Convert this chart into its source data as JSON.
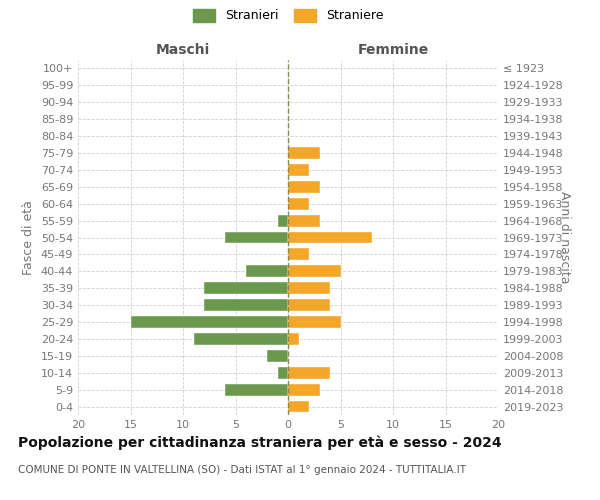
{
  "age_groups": [
    "100+",
    "95-99",
    "90-94",
    "85-89",
    "80-84",
    "75-79",
    "70-74",
    "65-69",
    "60-64",
    "55-59",
    "50-54",
    "45-49",
    "40-44",
    "35-39",
    "30-34",
    "25-29",
    "20-24",
    "15-19",
    "10-14",
    "5-9",
    "0-4"
  ],
  "birth_years": [
    "≤ 1923",
    "1924-1928",
    "1929-1933",
    "1934-1938",
    "1939-1943",
    "1944-1948",
    "1949-1953",
    "1954-1958",
    "1959-1963",
    "1964-1968",
    "1969-1973",
    "1974-1978",
    "1979-1983",
    "1984-1988",
    "1989-1993",
    "1994-1998",
    "1999-2003",
    "2004-2008",
    "2009-2013",
    "2014-2018",
    "2019-2023"
  ],
  "males": [
    0,
    0,
    0,
    0,
    0,
    0,
    0,
    0,
    0,
    1,
    6,
    0,
    4,
    8,
    8,
    15,
    9,
    2,
    1,
    6,
    0
  ],
  "females": [
    0,
    0,
    0,
    0,
    0,
    3,
    2,
    3,
    2,
    3,
    8,
    2,
    5,
    4,
    4,
    5,
    1,
    0,
    4,
    3,
    2
  ],
  "male_color": "#6a994e",
  "female_color": "#f4a629",
  "background_color": "#ffffff",
  "grid_color": "#cccccc",
  "title": "Popolazione per cittadinanza straniera per età e sesso - 2024",
  "subtitle": "COMUNE DI PONTE IN VALTELLINA (SO) - Dati ISTAT al 1° gennaio 2024 - TUTTITALIA.IT",
  "left_header": "Maschi",
  "right_header": "Femmine",
  "y_left_label": "Fasce di età",
  "y_right_label": "Anni di nascita",
  "legend_male": "Stranieri",
  "legend_female": "Straniere",
  "xlim": 20,
  "tick_fontsize": 8,
  "header_fontsize": 10,
  "title_fontsize": 10,
  "subtitle_fontsize": 7.5,
  "legend_fontsize": 9
}
